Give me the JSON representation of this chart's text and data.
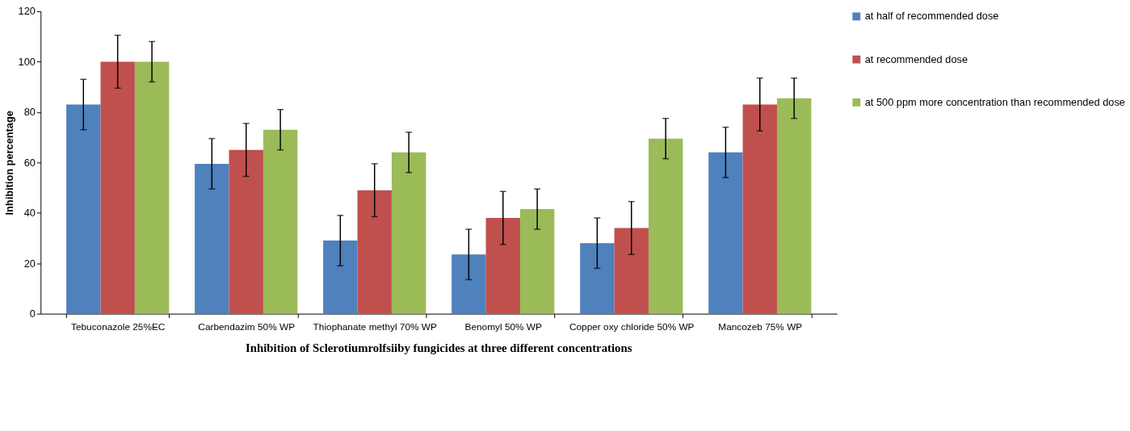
{
  "chart_data": {
    "type": "bar",
    "title": "Inhibition of Sclerotiumrolfsiiby fungicides at three different concentrations",
    "ylabel": "Inhibition percentage",
    "categories": [
      "Tebuconazole 25%EC",
      "Carbendazim 50% WP",
      "Thiophanate methyl 70% WP",
      "Benomyl 50% WP",
      "Copper  oxy chloride 50% WP",
      "Mancozeb 75% WP"
    ],
    "series": [
      {
        "name": "at half of recommended dose",
        "color": "#4f81bd",
        "values": [
          83,
          59.5,
          29,
          23.5,
          28,
          64
        ],
        "errors": [
          10,
          10,
          10,
          10,
          10,
          10
        ]
      },
      {
        "name": "at recommended dose",
        "color": "#c0504d",
        "values": [
          100,
          65,
          49,
          38,
          34,
          83
        ],
        "errors": [
          10.5,
          10.5,
          10.5,
          10.5,
          10.5,
          10.5
        ]
      },
      {
        "name": "at 500 ppm more concentration than recommended dose",
        "color": "#9bbb59",
        "values": [
          100,
          73,
          64,
          41.5,
          69.5,
          85.5
        ],
        "errors": [
          8,
          8,
          8,
          8,
          8,
          8
        ]
      }
    ],
    "ylim": [
      0,
      120
    ],
    "yticks": [
      0,
      20,
      40,
      60,
      80,
      100,
      120
    ],
    "grid": false,
    "legend": "right"
  }
}
